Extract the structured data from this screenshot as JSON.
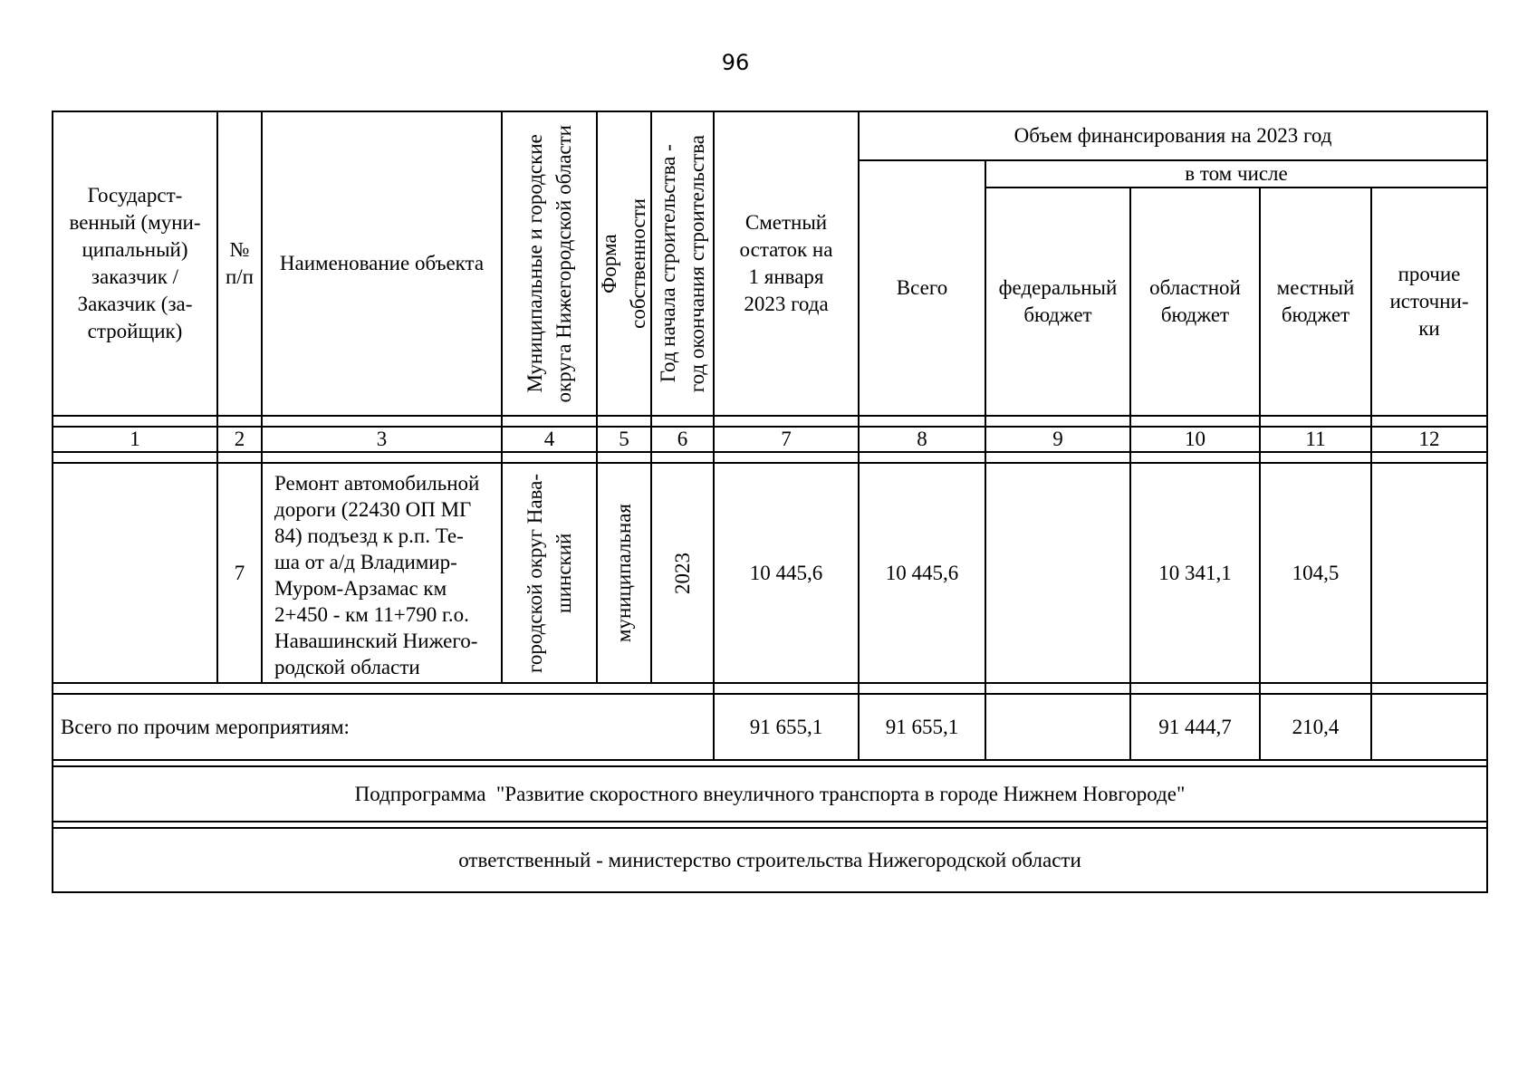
{
  "page_number": "96",
  "table": {
    "header": {
      "customer": "Государст-\nвенный (муни-\nципальный)\nзаказчик /\nЗаказчик (за-\nстройщик)",
      "row_num": "№\nп/п",
      "object_name": "Наименование объекта",
      "municipality": "Муниципальные и городские\nокруга Нижегородской области",
      "ownership": "Форма\nсобственности",
      "years": "Год начала строительства -\nгод окончания строительства",
      "estimate": "Сметный\nостаток на\n1 января\n2023 года",
      "financing_title": "Объем финансирования на 2023 год",
      "total": "Всего",
      "including": "в том числе",
      "federal": "федеральный\nбюджет",
      "regional": "областной\nбюджет",
      "local": "местный\nбюджет",
      "other": "прочие\nисточни-\nки"
    },
    "column_numbers": [
      "1",
      "2",
      "3",
      "4",
      "5",
      "6",
      "7",
      "8",
      "9",
      "10",
      "11",
      "12"
    ],
    "object_row": {
      "num": "7",
      "name": "Ремонт автомобильной\nдороги (22430 ОП МГ\n84) подъезд к р.п. Те-\nша от а/д Владимир-\nМуром-Арзамас км\n2+450 - км 11+790 г.о.\nНавашинский Нижего-\nродской области",
      "municipality": "городской округ Нава-\nшинский",
      "ownership": "муниципальная",
      "years": "2023",
      "estimate": "10 445,6",
      "total": "10 445,6",
      "federal": "",
      "regional": "10 341,1",
      "local": "104,5",
      "other": ""
    },
    "totals_row": {
      "label": "Всего по прочим мероприятиям:",
      "estimate": "91 655,1",
      "total": "91 655,1",
      "federal": "",
      "regional": "91 444,7",
      "local": "210,4",
      "other": ""
    },
    "subprogram": "Подпрограмма  \"Развитие скоростного внеуличного транспорта в городе Нижнем Новгороде\"",
    "responsible": "ответственный - министерство строительства Нижегородской области"
  }
}
